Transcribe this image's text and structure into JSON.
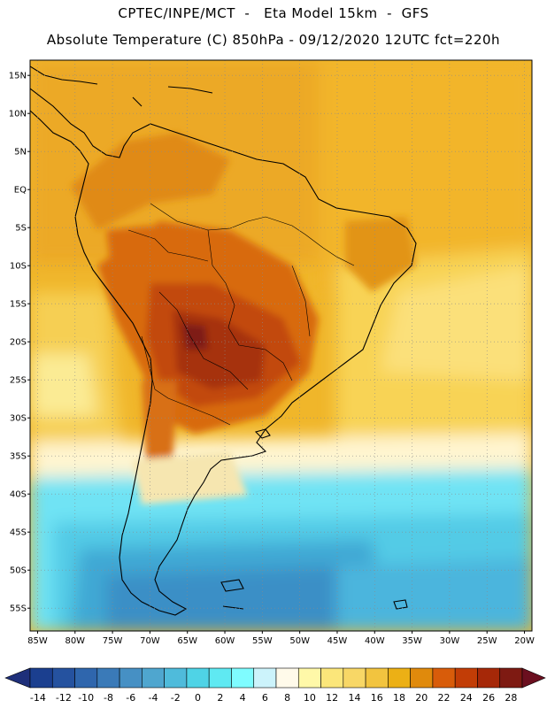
{
  "header": {
    "line1": "CPTEC/INPE/MCT  -   Eta Model 15km  -  GFS",
    "line2": "Absolute Temperature (C) 850hPa - 09/12/2020 12UTC fct=220h"
  },
  "map": {
    "lon_labels": [
      "85W",
      "80W",
      "75W",
      "70W",
      "65W",
      "60W",
      "55W",
      "50W",
      "45W",
      "40W",
      "35W",
      "30W",
      "25W",
      "20W"
    ],
    "lat_labels": [
      "15N",
      "10N",
      "5N",
      "EQ",
      "5S",
      "10S",
      "15S",
      "20S",
      "25S",
      "30S",
      "35S",
      "40S",
      "45S",
      "50S",
      "55S"
    ],
    "lon_range": [
      -86,
      -19
    ],
    "lat_range": [
      17,
      -58
    ],
    "grid": "dotted"
  },
  "colorbar": {
    "labels": [
      "-14",
      "-12",
      "-10",
      "-8",
      "-6",
      "-4",
      "-2",
      "0",
      "2",
      "4",
      "6",
      "8",
      "10",
      "12",
      "14",
      "16",
      "18",
      "20",
      "22",
      "24",
      "26",
      "28"
    ],
    "colors": [
      "#1b3f8f",
      "#25529f",
      "#2f66ad",
      "#3a7ab8",
      "#4690c4",
      "#4fa6cf",
      "#4fbbdb",
      "#4fd3e6",
      "#5fe9f2",
      "#7ffcff",
      "#ccf3fb",
      "#fffaea",
      "#fff8a8",
      "#fbe67a",
      "#f8d766",
      "#f2c43f",
      "#ecb015",
      "#e08a0c",
      "#d85c0a",
      "#c23d06",
      "#a62808",
      "#7e1a12"
    ],
    "left_arrow": "#1e2f7a",
    "right_arrow": "#6b0f1f"
  }
}
